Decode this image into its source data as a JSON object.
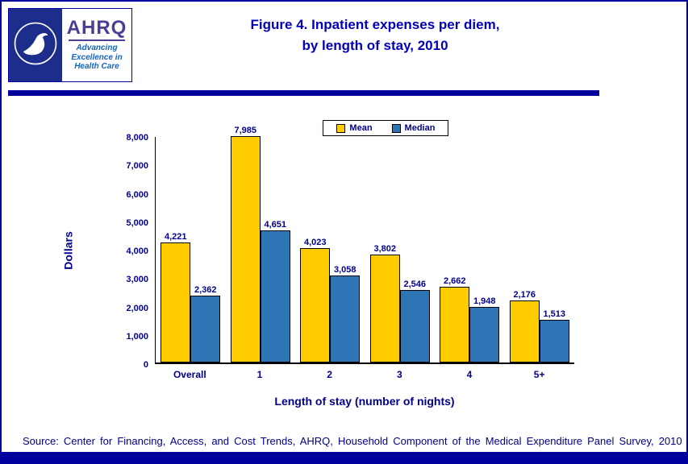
{
  "page": {
    "title_line1": "Figure 4. Inpatient expenses per diem,",
    "title_line2": "by length of stay, 2010",
    "source": "Source: Center for Financing, Access, and Cost Trends, AHRQ, Household Component of the Medical Expenditure Panel Survey, 2010"
  },
  "logo": {
    "ahrq_acronym": "AHRQ",
    "tagline_lines": [
      "Advancing",
      "Excellence in",
      "Health Care"
    ]
  },
  "colors": {
    "navy": "#00009C",
    "text_navy": "#00008B",
    "title_blue": "#0000B8",
    "hhs_blue": "#1D2D8C",
    "ahrq_purple": "#4B3E94",
    "tagline_blue": "#1565C0"
  },
  "chart_data": {
    "type": "bar",
    "title": "Figure 4. Inpatient expenses per diem, by length of stay, 2010",
    "categories": [
      "Overall",
      "1",
      "2",
      "3",
      "4",
      "5+"
    ],
    "series": [
      {
        "name": "Mean",
        "color": "#FFCC00",
        "values": [
          4221,
          7985,
          4023,
          3802,
          2662,
          2176
        ]
      },
      {
        "name": "Median",
        "color": "#2E75B6",
        "values": [
          2362,
          4651,
          3058,
          2546,
          1948,
          1513
        ]
      }
    ],
    "value_labels": [
      [
        "4,221",
        "7,985",
        "4,023",
        "3,802",
        "2,662",
        "2,176"
      ],
      [
        "2,362",
        "4,651",
        "3,058",
        "2,546",
        "1,948",
        "1,513"
      ]
    ],
    "ylabel": "Dollars",
    "xlabel": "Length of stay (number of nights)",
    "ylim": [
      0,
      8000
    ],
    "ytick_interval": 1000,
    "yticks": [
      "0",
      "1,000",
      "2,000",
      "3,000",
      "4,000",
      "5,000",
      "6,000",
      "7,000",
      "8,000"
    ],
    "legend_position": "top-center",
    "grid": false
  }
}
